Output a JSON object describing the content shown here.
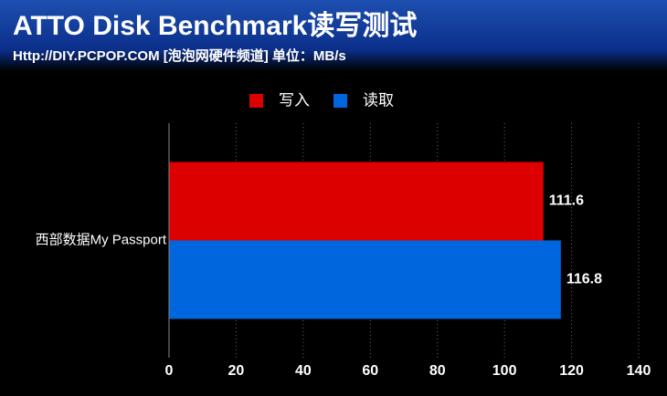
{
  "chart_data": {
    "type": "bar",
    "orientation": "horizontal",
    "title": "ATTO Disk Benchmark读写测试",
    "subtitle": "Http://DIY.PCPOP.COM [泡泡网硬件频道] 单位：MB/s",
    "categories": [
      "西部数据My Passport"
    ],
    "series": [
      {
        "name": "写入",
        "color": "#dd0000",
        "values": [
          111.6
        ]
      },
      {
        "name": "读取",
        "color": "#0066dd",
        "values": [
          116.8
        ]
      }
    ],
    "xlim": [
      0,
      140
    ],
    "xticks": [
      0,
      20,
      40,
      60,
      80,
      100,
      120,
      140
    ],
    "grid": true,
    "legend": "top"
  }
}
